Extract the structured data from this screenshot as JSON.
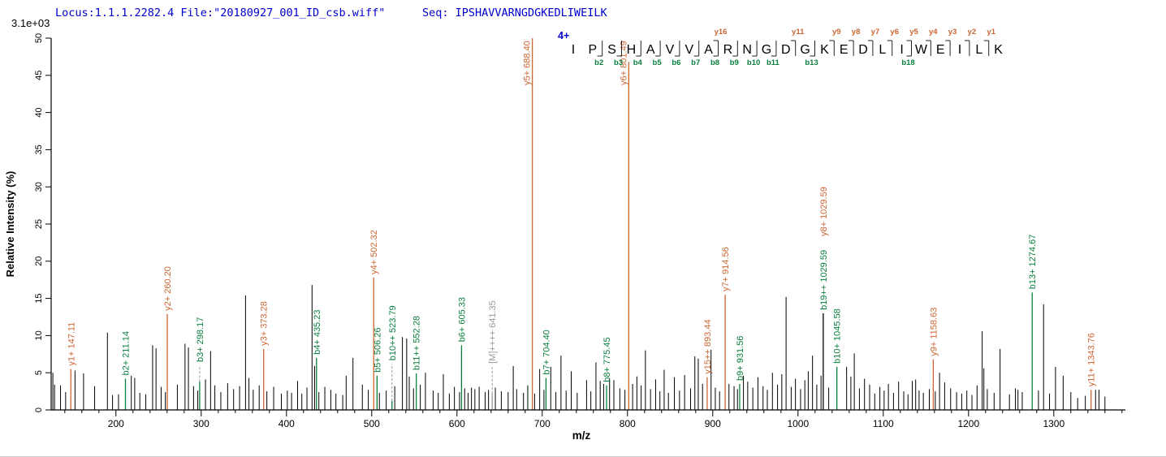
{
  "header": {
    "locus_file": "Locus:1.1.1.2282.4 File:\"20180927_001_ID_csb.wiff\"",
    "seq": "Seq: IPSHAVVARNGDGKEDLIWEILK",
    "intensity_scale": "3.1e+03"
  },
  "colors": {
    "header_text": "#0000cc",
    "ion": {
      "y": "#cc6633",
      "b": "#0a8040",
      "precursor": "#999999"
    },
    "peak": "#000000",
    "leader": "#9a9a9a"
  },
  "sequence_panel": {
    "charge": "4+",
    "residues": [
      "I",
      "P",
      "S",
      "H",
      "A",
      "V",
      "V",
      "A",
      "R",
      "N",
      "G",
      "D",
      "G",
      "K",
      "E",
      "D",
      "L",
      "I",
      "W",
      "E",
      "I",
      "L",
      "K"
    ],
    "cleavages": [
      {
        "after": 1,
        "b": "b2"
      },
      {
        "after": 2,
        "b": "b3"
      },
      {
        "after": 3,
        "b": "b4"
      },
      {
        "after": 4,
        "b": "b5"
      },
      {
        "after": 5,
        "b": "b6"
      },
      {
        "after": 6,
        "b": "b7"
      },
      {
        "after": 7,
        "b": "b8",
        "y": "y16"
      },
      {
        "after": 8,
        "b": "b9"
      },
      {
        "after": 9,
        "b": "b10"
      },
      {
        "after": 10,
        "b": "b11"
      },
      {
        "after": 11,
        "y": "y11"
      },
      {
        "after": 12,
        "b": "b13"
      },
      {
        "after": 13,
        "y": "y9"
      },
      {
        "after": 14,
        "y": "y8"
      },
      {
        "after": 15,
        "y": "y7"
      },
      {
        "after": 16,
        "y": "y6"
      },
      {
        "after": 17,
        "b": "b18",
        "y": "y5"
      },
      {
        "after": 18,
        "y": "y4"
      },
      {
        "after": 19,
        "y": "y3"
      },
      {
        "after": 20,
        "y": "y2"
      },
      {
        "after": 21,
        "y": "y1"
      }
    ]
  },
  "chart_data": {
    "type": "bar",
    "subtype": "ms2-centroid-spectrum",
    "title": "",
    "xlabel": "m/z",
    "ylabel": "Relative  Intensity (%)",
    "xlim": [
      124,
      1384
    ],
    "ylim": [
      0,
      50
    ],
    "x_major_ticks": [
      200,
      300,
      400,
      500,
      600,
      700,
      800,
      900,
      1000,
      1100,
      1200,
      1300
    ],
    "x_minor_step": 20,
    "y_tick_step": 5,
    "grid": false,
    "annotated_peaks": [
      {
        "mz": 147.11,
        "intensity": 5.5,
        "labels": [
          {
            "text": "y1+ 147.11",
            "ion": "y"
          }
        ]
      },
      {
        "mz": 211.14,
        "intensity": 4.2,
        "labels": [
          {
            "text": "b2+ 211.14",
            "ion": "b"
          }
        ]
      },
      {
        "mz": 260.2,
        "intensity": 12.9,
        "labels": [
          {
            "text": "y2+ 260.20",
            "ion": "y"
          }
        ]
      },
      {
        "mz": 298.17,
        "intensity": 3.8,
        "label_intensity": 6.0,
        "leader_dashed": true,
        "labels": [
          {
            "text": "b3+ 298.17",
            "ion": "b"
          }
        ]
      },
      {
        "mz": 373.28,
        "intensity": 8.2,
        "labels": [
          {
            "text": "y3+ 373.28",
            "ion": "y"
          }
        ]
      },
      {
        "mz": 435.23,
        "intensity": 7.0,
        "labels": [
          {
            "text": "b4+ 435.23",
            "ion": "b"
          }
        ]
      },
      {
        "mz": 502.32,
        "intensity": 17.8,
        "labels": [
          {
            "text": "y4+ 502.32",
            "ion": "y"
          }
        ]
      },
      {
        "mz": 506.26,
        "intensity": 4.6,
        "labels": [
          {
            "text": "b5+ 506.26",
            "ion": "b"
          }
        ]
      },
      {
        "mz": 523.79,
        "intensity": 1.2,
        "label_intensity": 6.2,
        "leader_dashed": true,
        "labels": [
          {
            "text": "b10++ 523.79",
            "ion": "b"
          }
        ]
      },
      {
        "mz": 552.28,
        "intensity": 4.9,
        "labels": [
          {
            "text": "b11++ 552.28",
            "ion": "b"
          }
        ]
      },
      {
        "mz": 605.33,
        "intensity": 8.7,
        "labels": [
          {
            "text": "b6+ 605.33",
            "ion": "b"
          }
        ]
      },
      {
        "mz": 641.35,
        "intensity": 2.2,
        "label_intensity": 5.8,
        "leader_dashed": true,
        "labels": [
          {
            "text": "[M]++++ 641.35",
            "ion": "precursor"
          }
        ]
      },
      {
        "mz": 688.4,
        "intensity": 50.0,
        "labels": [
          {
            "text": "y5+ 688.40",
            "ion": "y"
          }
        ]
      },
      {
        "mz": 704.4,
        "intensity": 4.3,
        "labels": [
          {
            "text": "b7+ 704.40",
            "ion": "b"
          }
        ]
      },
      {
        "mz": 775.45,
        "intensity": 3.3,
        "labels": [
          {
            "text": "b8+ 775.45",
            "ion": "b"
          }
        ]
      },
      {
        "mz": 801.49,
        "intensity": 46.8,
        "labels": [
          {
            "text": "y6+ 801.49",
            "ion": "y"
          }
        ]
      },
      {
        "mz": 893.44,
        "intensity": 4.4,
        "labels": [
          {
            "text": "y15++ 893.44",
            "ion": "y"
          }
        ]
      },
      {
        "mz": 914.56,
        "intensity": 15.5,
        "labels": [
          {
            "text": "y7+ 914.56",
            "ion": "y"
          }
        ]
      },
      {
        "mz": 931.56,
        "intensity": 3.5,
        "labels": [
          {
            "text": "b9+ 931.56",
            "ion": "b"
          }
        ]
      },
      {
        "mz": 1029.59,
        "intensity": 13.0,
        "peak_color": "black",
        "labels": [
          {
            "text": "b19++ 1029.59",
            "ion": "b"
          },
          {
            "text": "y8+ 1029.59",
            "ion": "y"
          }
        ]
      },
      {
        "mz": 1045.58,
        "intensity": 5.8,
        "labels": [
          {
            "text": "b10+ 1045.58",
            "ion": "b"
          }
        ]
      },
      {
        "mz": 1158.63,
        "intensity": 6.8,
        "labels": [
          {
            "text": "y9+ 1158.63",
            "ion": "y"
          }
        ]
      },
      {
        "mz": 1274.67,
        "intensity": 15.8,
        "labels": [
          {
            "text": "b13+ 1274.67",
            "ion": "b"
          }
        ]
      },
      {
        "mz": 1343.76,
        "intensity": 2.7,
        "labels": [
          {
            "text": "y11+ 1343.76",
            "ion": "y"
          }
        ]
      }
    ],
    "background_peaks": [
      [
        126,
        5.0
      ],
      [
        128,
        3.4
      ],
      [
        135,
        3.3
      ],
      [
        141,
        2.4
      ],
      [
        152,
        5.3
      ],
      [
        162,
        4.9
      ],
      [
        175,
        3.2
      ],
      [
        190,
        10.4
      ],
      [
        196,
        2.0
      ],
      [
        203,
        2.1
      ],
      [
        218,
        4.6
      ],
      [
        222,
        4.3
      ],
      [
        228,
        2.3
      ],
      [
        235,
        2.1
      ],
      [
        243,
        8.7
      ],
      [
        247,
        8.3
      ],
      [
        253,
        3.1
      ],
      [
        258,
        2.4
      ],
      [
        272,
        3.4
      ],
      [
        281,
        8.9
      ],
      [
        285,
        8.4
      ],
      [
        291,
        3.2
      ],
      [
        296,
        2.6
      ],
      [
        305,
        4.1
      ],
      [
        311,
        7.9
      ],
      [
        316,
        3.3
      ],
      [
        323,
        2.4
      ],
      [
        331,
        3.6
      ],
      [
        338,
        2.8
      ],
      [
        345,
        3.2
      ],
      [
        352,
        15.4
      ],
      [
        356,
        4.3
      ],
      [
        361,
        2.7
      ],
      [
        368,
        3.3
      ],
      [
        377,
        2.5
      ],
      [
        385,
        3.1
      ],
      [
        394,
        2.2
      ],
      [
        401,
        2.6
      ],
      [
        406,
        2.3
      ],
      [
        413,
        3.9
      ],
      [
        418,
        2.2
      ],
      [
        424,
        3.0
      ],
      [
        430,
        16.8
      ],
      [
        433,
        5.9
      ],
      [
        438,
        2.4
      ],
      [
        445,
        3.1
      ],
      [
        452,
        2.7
      ],
      [
        458,
        2.2
      ],
      [
        466,
        2.0
      ],
      [
        470,
        4.6
      ],
      [
        478,
        7.0
      ],
      [
        489,
        3.4
      ],
      [
        496,
        2.7
      ],
      [
        509,
        2.3
      ],
      [
        517,
        2.6
      ],
      [
        527,
        3.2
      ],
      [
        536,
        9.8
      ],
      [
        541,
        9.6
      ],
      [
        544,
        4.5
      ],
      [
        549,
        2.9
      ],
      [
        557,
        3.4
      ],
      [
        563,
        5.0
      ],
      [
        572,
        2.6
      ],
      [
        578,
        2.3
      ],
      [
        584,
        4.8
      ],
      [
        591,
        2.2
      ],
      [
        597,
        3.1
      ],
      [
        603,
        2.4
      ],
      [
        609,
        2.9
      ],
      [
        613,
        2.3
      ],
      [
        617,
        3.0
      ],
      [
        621,
        2.8
      ],
      [
        626,
        3.1
      ],
      [
        633,
        2.4
      ],
      [
        637,
        2.7
      ],
      [
        645,
        3.0
      ],
      [
        652,
        2.5
      ],
      [
        660,
        2.4
      ],
      [
        666,
        5.9
      ],
      [
        670,
        2.8
      ],
      [
        678,
        2.3
      ],
      [
        683,
        3.3
      ],
      [
        691,
        2.2
      ],
      [
        697,
        5.5
      ],
      [
        702,
        2.7
      ],
      [
        710,
        5.8
      ],
      [
        716,
        2.4
      ],
      [
        722,
        7.3
      ],
      [
        728,
        2.6
      ],
      [
        734,
        5.2
      ],
      [
        741,
        2.3
      ],
      [
        752,
        4.0
      ],
      [
        757,
        2.5
      ],
      [
        763,
        6.4
      ],
      [
        768,
        3.9
      ],
      [
        772,
        3.5
      ],
      [
        779,
        4.2
      ],
      [
        784,
        4.0
      ],
      [
        791,
        2.9
      ],
      [
        797,
        2.7
      ],
      [
        806,
        3.5
      ],
      [
        811,
        4.5
      ],
      [
        816,
        3.3
      ],
      [
        821,
        8.0
      ],
      [
        827,
        2.8
      ],
      [
        833,
        4.1
      ],
      [
        838,
        2.5
      ],
      [
        843,
        5.4
      ],
      [
        848,
        2.3
      ],
      [
        855,
        4.4
      ],
      [
        861,
        2.6
      ],
      [
        867,
        4.7
      ],
      [
        874,
        2.9
      ],
      [
        879,
        7.2
      ],
      [
        883,
        6.9
      ],
      [
        888,
        3.5
      ],
      [
        898,
        8.1
      ],
      [
        903,
        3.0
      ],
      [
        908,
        2.5
      ],
      [
        919,
        3.5
      ],
      [
        925,
        3.2
      ],
      [
        929,
        2.8
      ],
      [
        936,
        4.6
      ],
      [
        941,
        3.8
      ],
      [
        947,
        3.0
      ],
      [
        953,
        4.4
      ],
      [
        959,
        3.2
      ],
      [
        964,
        2.7
      ],
      [
        970,
        5.0
      ],
      [
        976,
        3.4
      ],
      [
        981,
        4.8
      ],
      [
        986,
        15.2
      ],
      [
        992,
        3.1
      ],
      [
        997,
        4.2
      ],
      [
        1003,
        2.8
      ],
      [
        1008,
        4.0
      ],
      [
        1012,
        5.2
      ],
      [
        1017,
        7.3
      ],
      [
        1022,
        3.4
      ],
      [
        1027,
        4.6
      ],
      [
        1036,
        3.0
      ],
      [
        1057,
        5.8
      ],
      [
        1062,
        4.5
      ],
      [
        1066,
        7.6
      ],
      [
        1072,
        2.9
      ],
      [
        1078,
        4.2
      ],
      [
        1084,
        3.4
      ],
      [
        1090,
        2.2
      ],
      [
        1096,
        3.1
      ],
      [
        1101,
        2.6
      ],
      [
        1106,
        3.5
      ],
      [
        1112,
        2.3
      ],
      [
        1118,
        3.8
      ],
      [
        1124,
        2.5
      ],
      [
        1129,
        2.1
      ],
      [
        1134,
        3.9
      ],
      [
        1138,
        4.1
      ],
      [
        1142,
        2.6
      ],
      [
        1147,
        2.3
      ],
      [
        1154,
        2.8
      ],
      [
        1161,
        2.5
      ],
      [
        1166,
        5.0
      ],
      [
        1172,
        3.7
      ],
      [
        1179,
        2.9
      ],
      [
        1186,
        2.4
      ],
      [
        1192,
        2.2
      ],
      [
        1198,
        2.6
      ],
      [
        1204,
        2.0
      ],
      [
        1210,
        3.3
      ],
      [
        1216,
        10.6
      ],
      [
        1218,
        5.6
      ],
      [
        1222,
        2.8
      ],
      [
        1230,
        2.3
      ],
      [
        1237,
        8.2
      ],
      [
        1248,
        2.1
      ],
      [
        1255,
        2.9
      ],
      [
        1258,
        2.7
      ],
      [
        1263,
        2.4
      ],
      [
        1282,
        2.6
      ],
      [
        1288,
        14.2
      ],
      [
        1295,
        2.2
      ],
      [
        1302,
        5.8
      ],
      [
        1311,
        4.6
      ],
      [
        1320,
        2.4
      ],
      [
        1328,
        1.6
      ],
      [
        1337,
        1.9
      ],
      [
        1349,
        2.7
      ],
      [
        1353,
        2.7
      ],
      [
        1360,
        1.8
      ]
    ]
  }
}
